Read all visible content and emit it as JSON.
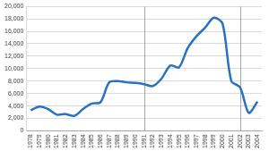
{
  "chart_data": {
    "type": "line",
    "categories": [
      "1978",
      "1979",
      "1980",
      "1981",
      "1982",
      "1983",
      "1984",
      "1985",
      "1986",
      "1987",
      "1988",
      "1989",
      "1990",
      "1991",
      "1992",
      "1993",
      "1994",
      "1995",
      "1996",
      "1997",
      "1998",
      "1999",
      "2000",
      "2001",
      "2002",
      "2003",
      "2004"
    ],
    "values": [
      3300,
      3900,
      3500,
      2600,
      2700,
      2400,
      3500,
      4400,
      4600,
      7800,
      8000,
      7800,
      7700,
      7500,
      7200,
      8400,
      10500,
      10200,
      13300,
      15200,
      16600,
      18200,
      17200,
      8000,
      7000,
      2900,
      4700
    ],
    "color": "#2a72c0",
    "ylim": [
      0,
      20000
    ],
    "yticks": [
      0,
      {
        "value": 2000,
        "label": "2,000"
      },
      {
        "value": 4000,
        "label": "4,000"
      },
      {
        "value": 6000,
        "label": "6,000"
      },
      {
        "value": 8000,
        "label": "8,000"
      },
      {
        "value": 10000,
        "label": "10,000"
      },
      {
        "value": 12000,
        "label": "12,000"
      },
      {
        "value": 14000,
        "label": "14,000"
      },
      {
        "value": 16000,
        "label": "16,000"
      },
      {
        "value": 18000,
        "label": "18,000"
      },
      {
        "value": 20000,
        "label": "20,000"
      }
    ],
    "vertical_lines": [
      "1991",
      "2002"
    ],
    "grid": true
  }
}
